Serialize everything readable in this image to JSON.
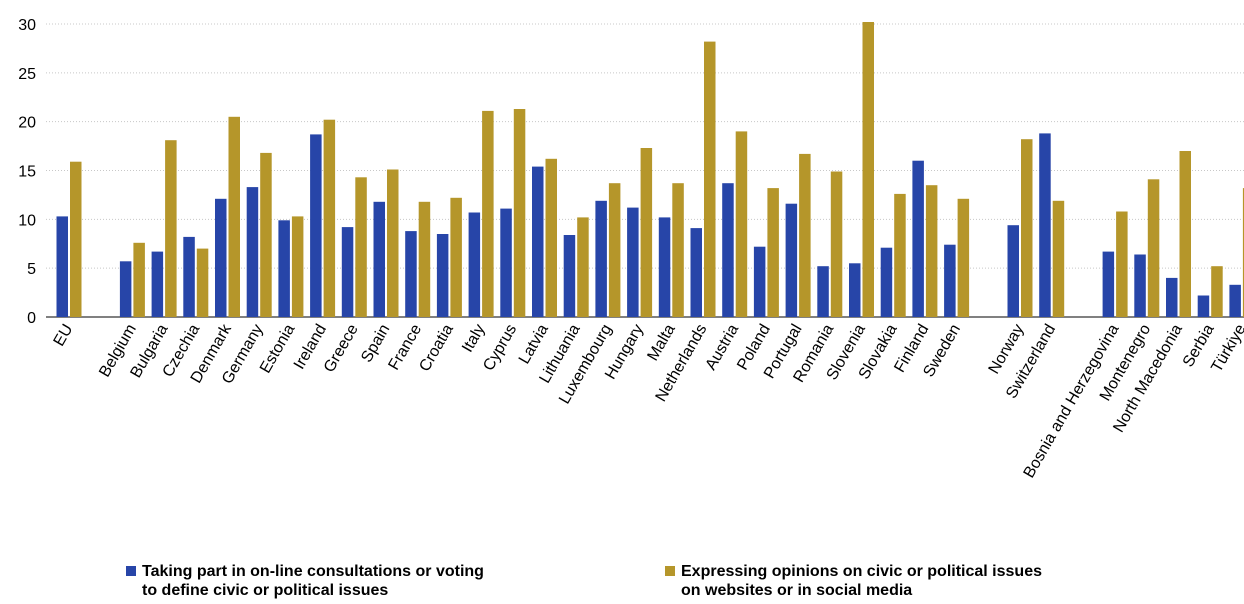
{
  "chart_data": {
    "type": "bar",
    "categories": [
      "EU",
      "",
      "Belgium",
      "Bulgaria",
      "Czechia",
      "Denmark",
      "Germany",
      "Estonia",
      "Ireland",
      "Greece",
      "Spain",
      "France",
      "Croatia",
      "Italy",
      "Cyprus",
      "Latvia",
      "Lithuania",
      "Luxembourg",
      "Hungary",
      "Malta",
      "Netherlands",
      "Austria",
      "Poland",
      "Portugal",
      "Romania",
      "Slovenia",
      "Slovakia",
      "Finland",
      "Sweden",
      "",
      "Norway",
      "Switzerland",
      "",
      "Bosnia and Herzegovina",
      "Montenegro",
      "North Macedonia",
      "Serbia",
      "Türkiye"
    ],
    "series": [
      {
        "name": "Taking part in on-line consultations or voting to define civic or political issues",
        "name_lines": [
          "Taking part in on-line consultations or voting",
          "to define civic or political issues"
        ],
        "color": "#2745a8",
        "values": [
          10.3,
          null,
          5.7,
          6.7,
          8.2,
          12.1,
          13.3,
          9.9,
          18.7,
          9.2,
          11.8,
          8.8,
          8.5,
          10.7,
          11.1,
          15.4,
          8.4,
          11.9,
          11.2,
          10.2,
          9.1,
          13.7,
          7.2,
          11.6,
          5.2,
          5.5,
          7.1,
          16.0,
          7.4,
          null,
          9.4,
          18.8,
          null,
          6.7,
          6.4,
          4.0,
          2.2,
          3.3
        ]
      },
      {
        "name": "Expressing opinions on civic or political issues on websites or in social media",
        "name_lines": [
          "Expressing opinions on civic or political issues",
          "on websites or in social media"
        ],
        "color": "#b5962a",
        "values": [
          15.9,
          null,
          7.6,
          18.1,
          7.0,
          20.5,
          16.8,
          10.3,
          20.2,
          14.3,
          15.1,
          11.8,
          12.2,
          21.1,
          21.3,
          16.2,
          10.2,
          13.7,
          17.3,
          13.7,
          28.2,
          19.0,
          13.2,
          16.7,
          14.9,
          30.2,
          12.6,
          13.5,
          12.1,
          null,
          18.2,
          11.9,
          null,
          10.8,
          14.1,
          17.0,
          5.2,
          13.2
        ]
      }
    ],
    "ylim": [
      0,
      30
    ],
    "yticks": [
      0,
      5,
      10,
      15,
      20,
      25,
      30
    ],
    "grid": true,
    "legend_position": "bottom"
  }
}
